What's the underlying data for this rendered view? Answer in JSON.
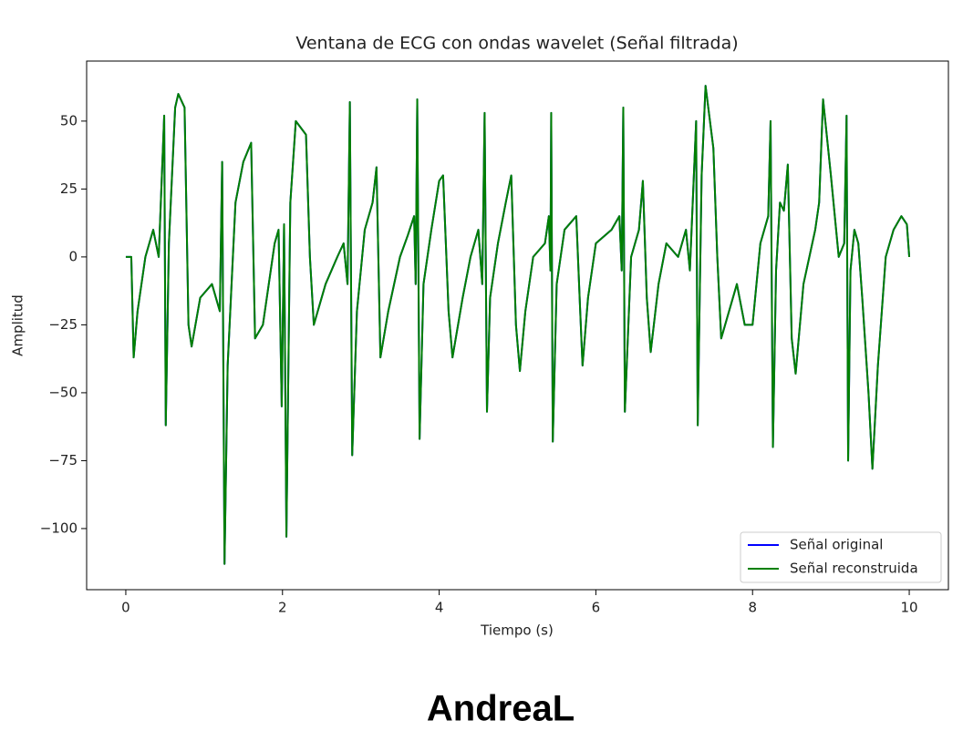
{
  "chart_data": {
    "type": "line",
    "title": "Ventana de ECG con ondas wavelet (Señal filtrada)",
    "x_label": "Tiempo (s)",
    "y_label": "Amplitud",
    "x": [
      0,
      0.07,
      0.1,
      0.15,
      0.25,
      0.35,
      0.42,
      0.49,
      0.51,
      0.55,
      0.63,
      0.67,
      0.75,
      0.8,
      0.84,
      0.95,
      1.1,
      1.2,
      1.23,
      1.26,
      1.3,
      1.4,
      1.5,
      1.6,
      1.65,
      1.75,
      1.85,
      1.9,
      1.95,
      1.99,
      2.02,
      2.05,
      2.1,
      2.17,
      2.3,
      2.35,
      2.4,
      2.55,
      2.7,
      2.78,
      2.83,
      2.86,
      2.89,
      2.95,
      3.05,
      3.15,
      3.2,
      3.25,
      3.35,
      3.5,
      3.6,
      3.68,
      3.7,
      3.72,
      3.75,
      3.8,
      3.9,
      4.0,
      4.05,
      4.12,
      4.17,
      4.3,
      4.4,
      4.5,
      4.55,
      4.58,
      4.61,
      4.65,
      4.75,
      4.85,
      4.92,
      4.98,
      5.03,
      5.1,
      5.2,
      5.35,
      5.4,
      5.42,
      5.43,
      5.45,
      5.5,
      5.6,
      5.75,
      5.8,
      5.83,
      5.9,
      6.0,
      6.2,
      6.3,
      6.33,
      6.35,
      6.37,
      6.45,
      6.55,
      6.6,
      6.65,
      6.7,
      6.8,
      6.9,
      7.05,
      7.15,
      7.2,
      7.28,
      7.3,
      7.35,
      7.4,
      7.5,
      7.55,
      7.6,
      7.7,
      7.8,
      7.9,
      8.0,
      8.1,
      8.2,
      8.23,
      8.26,
      8.3,
      8.35,
      8.4,
      8.45,
      8.5,
      8.55,
      8.65,
      8.8,
      8.85,
      8.9,
      9.0,
      9.1,
      9.17,
      9.2,
      9.22,
      9.25,
      9.3,
      9.35,
      9.4,
      9.48,
      9.53,
      9.6,
      9.7,
      9.8,
      9.9,
      9.97,
      10.0
    ],
    "series": [
      {
        "name": "Señal original",
        "color": "#0000ff",
        "values": [
          0,
          0,
          -37,
          -20,
          0,
          10,
          0,
          52,
          -62,
          5,
          55,
          60,
          55,
          -25,
          -33,
          -15,
          -10,
          -20,
          35,
          -113,
          -40,
          20,
          35,
          42,
          -30,
          -25,
          -5,
          5,
          10,
          -55,
          12,
          -103,
          20,
          50,
          45,
          0,
          -25,
          -10,
          0,
          5,
          -10,
          57,
          -73,
          -20,
          10,
          20,
          33,
          -37,
          -20,
          0,
          8,
          15,
          -10,
          58,
          -67,
          -10,
          10,
          28,
          30,
          -20,
          -37,
          -15,
          0,
          10,
          -10,
          53,
          -57,
          -15,
          5,
          20,
          30,
          -25,
          -42,
          -20,
          0,
          5,
          15,
          -5,
          53,
          -68,
          -10,
          10,
          15,
          -20,
          -40,
          -15,
          5,
          10,
          15,
          -5,
          55,
          -57,
          0,
          10,
          28,
          -15,
          -35,
          -10,
          5,
          0,
          10,
          -5,
          50,
          -62,
          30,
          63,
          40,
          0,
          -30,
          -20,
          -10,
          -25,
          -25,
          5,
          15,
          50,
          -70,
          -5,
          20,
          17,
          34,
          -30,
          -43,
          -10,
          10,
          20,
          58,
          30,
          0,
          5,
          52,
          -75,
          -5,
          10,
          5,
          -15,
          -50,
          -78,
          -40,
          0,
          10,
          15,
          12,
          0
        ]
      },
      {
        "name": "Señal reconstruida",
        "color": "#008000",
        "values": [
          0,
          0,
          -37,
          -20,
          0,
          10,
          0,
          52,
          -62,
          5,
          55,
          60,
          55,
          -25,
          -33,
          -15,
          -10,
          -20,
          35,
          -113,
          -40,
          20,
          35,
          42,
          -30,
          -25,
          -5,
          5,
          10,
          -55,
          12,
          -103,
          20,
          50,
          45,
          0,
          -25,
          -10,
          0,
          5,
          -10,
          57,
          -73,
          -20,
          10,
          20,
          33,
          -37,
          -20,
          0,
          8,
          15,
          -10,
          58,
          -67,
          -10,
          10,
          28,
          30,
          -20,
          -37,
          -15,
          0,
          10,
          -10,
          53,
          -57,
          -15,
          5,
          20,
          30,
          -25,
          -42,
          -20,
          0,
          5,
          15,
          -5,
          53,
          -68,
          -10,
          10,
          15,
          -20,
          -40,
          -15,
          5,
          10,
          15,
          -5,
          55,
          -57,
          0,
          10,
          28,
          -15,
          -35,
          -10,
          5,
          0,
          10,
          -5,
          50,
          -62,
          30,
          63,
          40,
          0,
          -30,
          -20,
          -10,
          -25,
          -25,
          5,
          15,
          50,
          -70,
          -5,
          20,
          17,
          34,
          -30,
          -43,
          -10,
          10,
          20,
          58,
          30,
          0,
          5,
          52,
          -75,
          -5,
          10,
          5,
          -15,
          -50,
          -78,
          -40,
          0,
          10,
          15,
          12,
          0
        ]
      }
    ],
    "xlim": [
      -0.5,
      10.5
    ],
    "ylim": [
      -122.5,
      72.1
    ],
    "xticks": [
      0,
      2,
      4,
      6,
      8,
      10
    ],
    "yticks": [
      50,
      25,
      0,
      {
        "value": -25,
        "label": "−25"
      },
      {
        "value": -50,
        "label": "−50"
      },
      {
        "value": -75,
        "label": "−75"
      },
      {
        "value": -100,
        "label": "−100"
      }
    ],
    "grid": false,
    "legend": "lower right"
  },
  "footer": "AndreaL"
}
